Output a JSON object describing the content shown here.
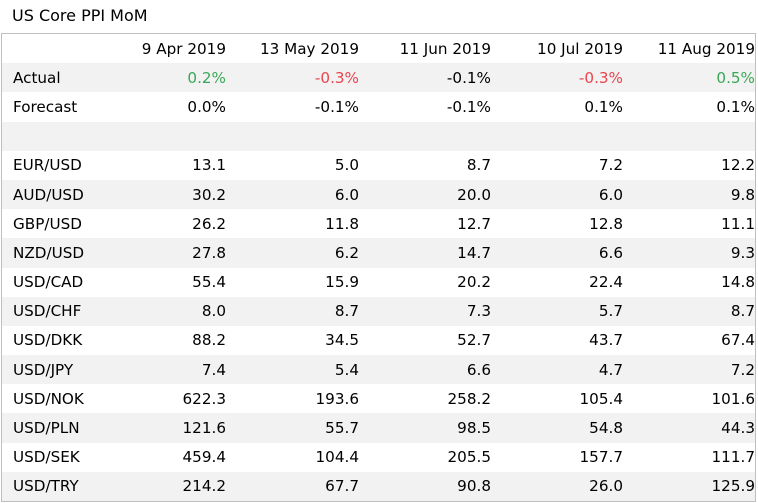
{
  "title": "US Core PPI MoM",
  "colors": {
    "positive": "#3aa757",
    "negative": "#e8464f",
    "shade": "#f2f2f2"
  },
  "headers": [
    "9 Apr 2019",
    "13 May 2019",
    "11 Jun 2019",
    "10 Jul 2019",
    "11 Aug 2019"
  ],
  "actual": {
    "label": "Actual",
    "values": [
      "0.2%",
      "-0.3%",
      "-0.1%",
      "-0.3%",
      "0.5%"
    ]
  },
  "forecast": {
    "label": "Forecast",
    "values": [
      "0.0%",
      "-0.1%",
      "-0.1%",
      "0.1%",
      "0.1%"
    ]
  },
  "pairs": [
    {
      "name": "EUR/USD",
      "values": [
        "13.1",
        "5.0",
        "8.7",
        "7.2",
        "12.2"
      ]
    },
    {
      "name": "AUD/USD",
      "values": [
        "30.2",
        "6.0",
        "20.0",
        "6.0",
        "9.8"
      ]
    },
    {
      "name": "GBP/USD",
      "values": [
        "26.2",
        "11.8",
        "12.7",
        "12.8",
        "11.1"
      ]
    },
    {
      "name": "NZD/USD",
      "values": [
        "27.8",
        "6.2",
        "14.7",
        "6.6",
        "9.3"
      ]
    },
    {
      "name": "USD/CAD",
      "values": [
        "55.4",
        "15.9",
        "20.2",
        "22.4",
        "14.8"
      ]
    },
    {
      "name": "USD/CHF",
      "values": [
        "8.0",
        "8.7",
        "7.3",
        "5.7",
        "8.7"
      ]
    },
    {
      "name": "USD/DKK",
      "values": [
        "88.2",
        "34.5",
        "52.7",
        "43.7",
        "67.4"
      ]
    },
    {
      "name": "USD/JPY",
      "values": [
        "7.4",
        "5.4",
        "6.6",
        "4.7",
        "7.2"
      ]
    },
    {
      "name": "USD/NOK",
      "values": [
        "622.3",
        "193.6",
        "258.2",
        "105.4",
        "101.6"
      ]
    },
    {
      "name": "USD/PLN",
      "values": [
        "121.6",
        "55.7",
        "98.5",
        "54.8",
        "44.3"
      ]
    },
    {
      "name": "USD/SEK",
      "values": [
        "459.4",
        "104.4",
        "205.5",
        "157.7",
        "111.7"
      ]
    },
    {
      "name": "USD/TRY",
      "values": [
        "214.2",
        "67.7",
        "90.8",
        "26.0",
        "125.9"
      ]
    }
  ]
}
